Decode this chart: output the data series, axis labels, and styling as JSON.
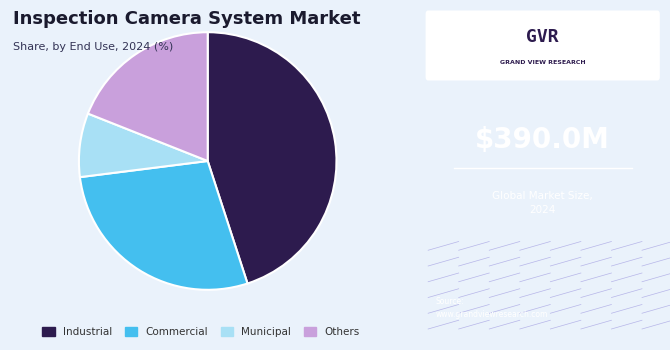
{
  "title": "Inspection Camera System Market",
  "subtitle": "Share, by End Use, 2024 (%)",
  "segments": [
    "Industrial",
    "Commercial",
    "Municipal",
    "Others"
  ],
  "values": [
    45,
    28,
    8,
    19
  ],
  "colors": [
    "#2d1b4e",
    "#44bfef",
    "#a8e0f5",
    "#c9a0dc"
  ],
  "startangle": 90,
  "legend_labels": [
    "Industrial",
    "Commercial",
    "Municipal",
    "Others"
  ],
  "bg_color": "#eaf2fb",
  "right_panel_color": "#3b1f5e",
  "market_size": "$390.0M",
  "market_label": "Global Market Size,\n2024",
  "source_text": "Source:\nwww.grandviewresearch.com"
}
